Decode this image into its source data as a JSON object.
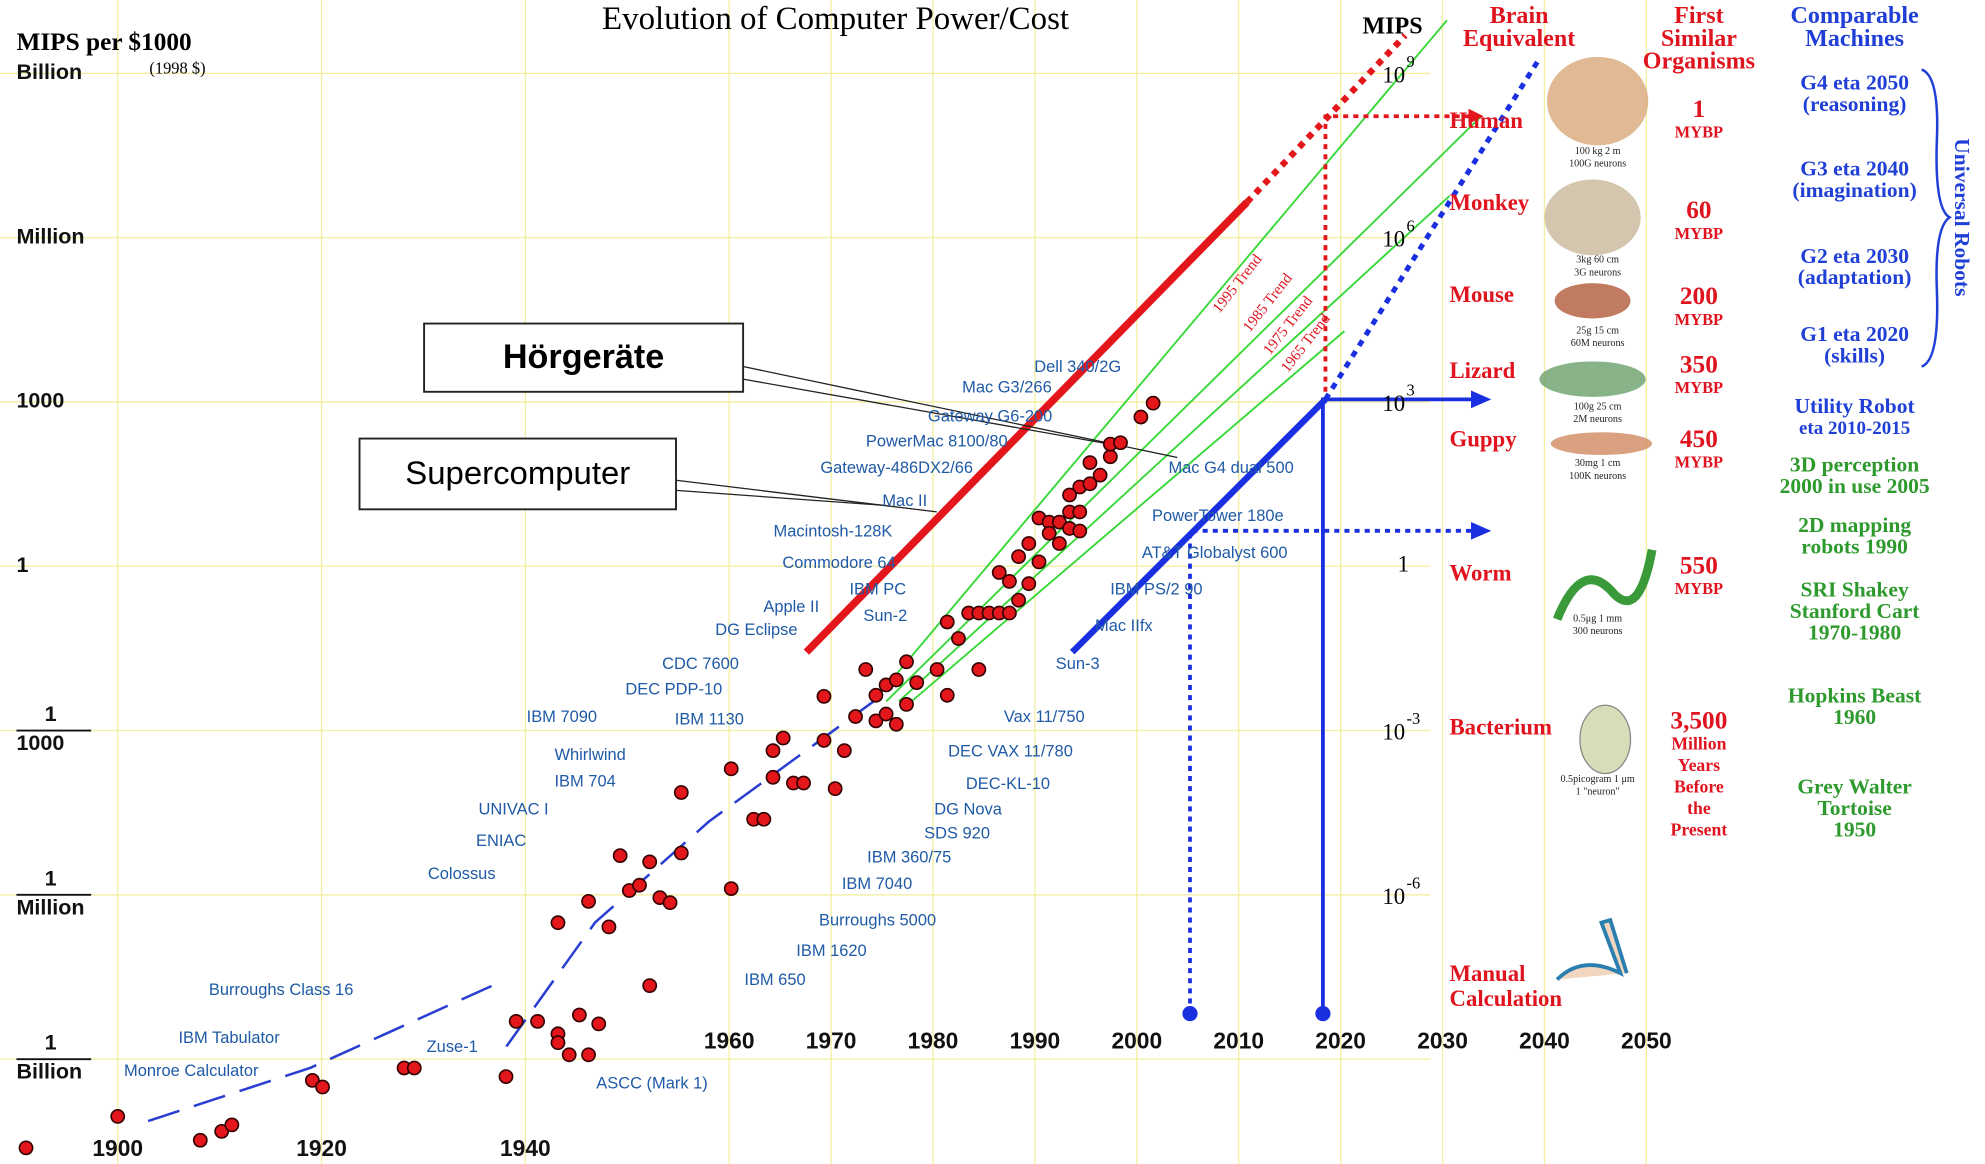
{
  "chart_data": {
    "type": "scatter",
    "title": "Evolution of Computer Power/Cost",
    "y_label": "MIPS per $1000",
    "y_label_note": "(1998 $)",
    "y2_label": "MIPS",
    "log_y": true,
    "grid": true,
    "color": "#e3161b",
    "xlim": [
      1890,
      2050
    ],
    "xticks": [
      1900,
      1920,
      1940,
      1960,
      1970,
      1980,
      1990,
      2000,
      2010,
      2020,
      2030,
      2040,
      2050
    ],
    "ylim": [
      1e-11,
      10000000000.0
    ],
    "yticks": [
      {
        "value": 1000000000.0,
        "label": "Billion"
      },
      {
        "value": 1000000.0,
        "label": "Million"
      },
      1000,
      1,
      {
        "value": 0.001,
        "label": [
          "1",
          "1000"
        ]
      },
      {
        "value": 1e-06,
        "label": [
          "1",
          "Million"
        ]
      },
      {
        "value": 1e-09,
        "label": [
          "1",
          "Billion"
        ]
      }
    ],
    "y2lim": [
      1e-11,
      10000000000.0
    ],
    "y2ticks": [
      {
        "value": 1000000000.0,
        "label": [
          "10",
          "9"
        ]
      },
      {
        "value": 1000000.0,
        "label": [
          "10",
          "6"
        ]
      },
      {
        "value": 1000,
        "label": [
          "10",
          "3"
        ]
      },
      1,
      {
        "value": 0.001,
        "label": [
          "10",
          "-3"
        ]
      },
      {
        "value": 1e-06,
        "label": [
          "10",
          "-6"
        ]
      }
    ],
    "x": [
      1891,
      1900,
      1908.1,
      1910.2,
      1911.2,
      1919.1,
      1920.1,
      1928.1,
      1929.1,
      1938.1,
      1939.1,
      1941.2,
      1943.2,
      1943.2,
      1944.3,
      1945.3,
      1946.2,
      1947.2,
      1943.2,
      1946.2,
      1948.2,
      1949.3,
      1950.2,
      1951.2,
      1952.2,
      1953.2,
      1954.2,
      1952.2,
      1955.3,
      1955.3,
      1960.2,
      1960.2,
      1962.4,
      1963.4,
      1964.3,
      1964.3,
      1965.3,
      1966.3,
      1967.3,
      1969.3,
      1969.3,
      1970.4,
      1971.3,
      1972.4,
      1973.4,
      1974.4,
      1974.4,
      1975.4,
      1975.4,
      1976.4,
      1976.4,
      1977.4,
      1977.4,
      1978.4,
      1980.4,
      1981.4,
      1981.4,
      1982.5,
      1983.5,
      1984.5,
      1984.5,
      1985.5,
      1986.5,
      1987.5,
      1986.5,
      1987.5,
      1988.4,
      1988.4,
      1989.4,
      1989.4,
      1990.4,
      1990.4,
      1991.4,
      1991.4,
      1992.4,
      1992.4,
      1993.4,
      1993.4,
      1993.4,
      1994.4,
      1994.4,
      1994.4,
      1995.4,
      1995.4,
      1996.4,
      1997.4,
      1997.4,
      1998.4,
      2000.4,
      2001.6
    ],
    "values": [
      2.4e-11,
      9e-11,
      3.3e-11,
      4.8e-11,
      6.3e-11,
      4.1e-10,
      3.1e-10,
      6.9e-10,
      6.9e-10,
      4.8e-10,
      4.9e-09,
      4.9e-09,
      2.9e-09,
      2e-09,
      1.2e-09,
      6.4e-09,
      1.2e-09,
      4.4e-09,
      3.1e-07,
      7.6e-07,
      2.6e-07,
      5.2e-06,
      1.2e-06,
      1.5e-06,
      4e-06,
      8.9e-07,
      7.2e-07,
      2.2e-08,
      5.8e-06,
      7.4e-05,
      0.0002,
      1.3e-06,
      2.4e-05,
      2.4e-05,
      0.00043,
      0.00014,
      0.00073,
      0.00011,
      0.00011,
      0.0042,
      0.00066,
      8.7e-05,
      0.00043,
      0.0018,
      0.013,
      0.0015,
      0.0044,
      0.002,
      0.0068,
      0.0084,
      0.0013,
      0.018,
      0.003,
      0.0075,
      0.013,
      0.0044,
      0.096,
      0.048,
      0.14,
      0.14,
      0.013,
      0.14,
      0.14,
      0.14,
      0.77,
      0.53,
      0.24,
      1.5,
      2.6,
      0.48,
      7.6,
      1.2,
      6.4,
      4,
      6.4,
      2.6,
      20,
      9.8,
      4.9,
      28,
      9.8,
      4.4,
      32,
      78,
      46,
      100,
      170,
      180,
      530,
      950
    ],
    "annotations": [
      "Dell 340/2G",
      "Mac G3/266",
      "Gateway G6-200",
      "PowerMac 8100/80",
      "Gateway-486DX2/66",
      "Mac II",
      "Macintosh-128K",
      "Commodore 64",
      "IBM PC",
      "Apple II",
      "Sun-2",
      "DG Eclipse",
      "CDC 7600",
      "DEC PDP-10",
      "IBM 7090",
      "IBM 1130",
      "Whirlwind",
      "IBM 704",
      "UNIVAC I",
      "ENIAC",
      "Colossus",
      "Burroughs Class 16",
      "IBM Tabulator",
      "Monroe Calculator",
      "Zuse-1",
      "ASCC (Mark 1)",
      "Mac G4 dual 500",
      "PowerTower 180e",
      "AT&T Globalyst 600",
      "IBM PS/2 90",
      "Mac IIfx",
      "Sun-3",
      "Vax 11/750",
      "DEC VAX 11/780",
      "DEC-KL-10",
      "DG Nova",
      "SDS 920",
      "IBM 360/75",
      "IBM 7040",
      "Burroughs 5000",
      "IBM 1620",
      "IBM 650"
    ],
    "trend_labels": [
      "1995 Trend",
      "1985 Trend",
      "1975 Trend",
      "1965 Trend"
    ],
    "callouts": [
      "Hörgeräte",
      "Supercomputer"
    ]
  },
  "panel": {
    "brain_header": [
      "Brain",
      "Equivalent"
    ],
    "organism_header": [
      "First",
      "Similar",
      "Organisms"
    ],
    "machine_header": [
      "Comparable",
      "Machines"
    ],
    "organisms": [
      {
        "name": "Human",
        "size": "100 kg   2 m",
        "neurons": "100G neurons",
        "age": "1",
        "age_unit": [
          "MYBP"
        ]
      },
      {
        "name": "Monkey",
        "size": "3kg   60 cm",
        "neurons": "3G neurons",
        "age": "60",
        "age_unit": [
          "MYBP"
        ]
      },
      {
        "name": "Mouse",
        "size": "25g   15 cm",
        "neurons": "60M neurons",
        "age": "200",
        "age_unit": [
          "MYBP"
        ]
      },
      {
        "name": "Lizard",
        "size": "100g  25 cm",
        "neurons": "2M neurons",
        "age": "350",
        "age_unit": [
          "MYBP"
        ]
      },
      {
        "name": "Guppy",
        "size": "30mg    1 cm",
        "neurons": "100K neurons",
        "age": "450",
        "age_unit": [
          "MYBP"
        ]
      },
      {
        "name": "Worm",
        "size": "0.5μg  1 mm",
        "neurons": "300 neurons",
        "age": "550",
        "age_unit": [
          "MYBP"
        ]
      },
      {
        "name": "Bacterium",
        "size": "0.5picogram 1 μm",
        "neurons": "1 \"neuron\"",
        "age": "3,500",
        "age_unit": [
          "Million",
          "Years",
          "Before",
          "the",
          "Present"
        ]
      }
    ],
    "manual": [
      "Manual",
      "Calculation"
    ],
    "machines": [
      {
        "lines": [
          "G4 eta 2050",
          "(reasoning)"
        ],
        "color": "#1f3fd6"
      },
      {
        "lines": [
          "G3 eta 2040",
          "(imagination)"
        ],
        "color": "#1f3fd6"
      },
      {
        "lines": [
          "G2 eta 2030",
          "(adaptation)"
        ],
        "color": "#1f3fd6"
      },
      {
        "lines": [
          "G1 eta 2020",
          "(skills)"
        ],
        "color": "#1f3fd6"
      },
      {
        "lines": [
          "Utility Robot",
          "eta 2010-2015"
        ],
        "color": "#1f3fd6"
      },
      {
        "lines": [
          "3D perception",
          "2000 in use 2005"
        ],
        "color": "#2e9a2e"
      },
      {
        "lines": [
          "2D mapping",
          "robots 1990"
        ],
        "color": "#2e9a2e"
      },
      {
        "lines": [
          "SRI Shakey",
          "Stanford Cart",
          "1970-1980"
        ],
        "color": "#2e9a2e"
      },
      {
        "lines": [
          "Hopkins Beast",
          "1960"
        ],
        "color": "#2e9a2e"
      },
      {
        "lines": [
          "Grey Walter",
          "Tortoise",
          "1950"
        ],
        "color": "#2e9a2e"
      }
    ],
    "universal_robots": "Universal Robots"
  }
}
